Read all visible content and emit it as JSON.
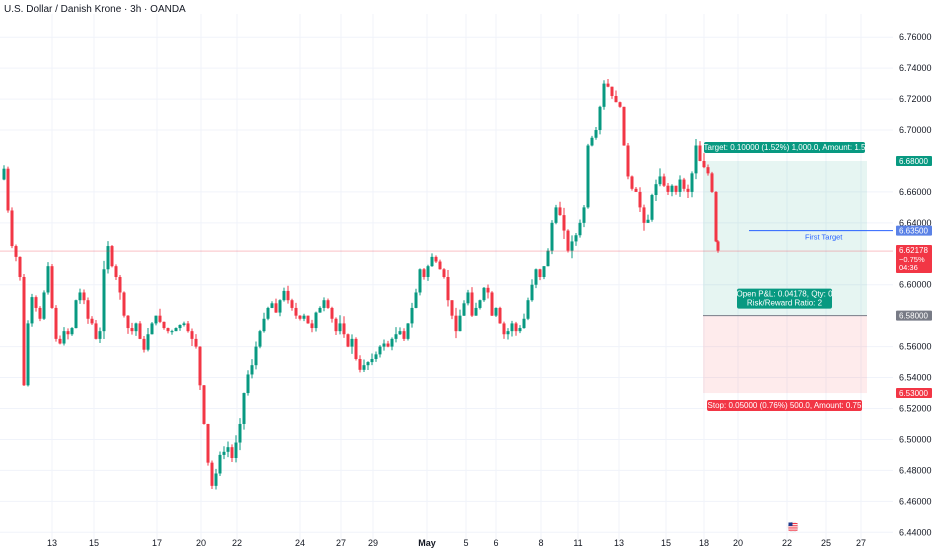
{
  "header": {
    "title": "U.S. Dollar / Danish Krone · 3h · OANDA"
  },
  "colors": {
    "up": "#089981",
    "down": "#f23645",
    "blue": "#2962ff",
    "badge_blue": "#5b82e6"
  },
  "chart_data": {
    "type": "candlestick",
    "ylim": [
      6.435,
      6.775
    ],
    "y_ticks": [
      "6.76000",
      "6.74000",
      "6.72000",
      "6.70000",
      "6.66000",
      "6.64000",
      "6.60000",
      "6.56000",
      "6.54000",
      "6.52000",
      "6.50000",
      "6.48000",
      "6.46000",
      "6.44000"
    ],
    "x_ticks": [
      {
        "label": "13",
        "pos": 52
      },
      {
        "label": "15",
        "pos": 94
      },
      {
        "label": "17",
        "pos": 157
      },
      {
        "label": "20",
        "pos": 201
      },
      {
        "label": "22",
        "pos": 237
      },
      {
        "label": "24",
        "pos": 300
      },
      {
        "label": "27",
        "pos": 341
      },
      {
        "label": "29",
        "pos": 373
      },
      {
        "label": "May",
        "pos": 427,
        "bold": true
      },
      {
        "label": "5",
        "pos": 466
      },
      {
        "label": "6",
        "pos": 496
      },
      {
        "label": "8",
        "pos": 541
      },
      {
        "label": "11",
        "pos": 578
      },
      {
        "label": "13",
        "pos": 619
      },
      {
        "label": "15",
        "pos": 666
      },
      {
        "label": "18",
        "pos": 704
      },
      {
        "label": "20",
        "pos": 738
      },
      {
        "label": "22",
        "pos": 787
      },
      {
        "label": "25",
        "pos": 826
      },
      {
        "label": "27",
        "pos": 861
      }
    ],
    "price_path": [
      [
        0,
        6.668
      ],
      [
        4,
        6.675
      ],
      [
        8,
        6.648
      ],
      [
        12,
        6.625
      ],
      [
        16,
        6.618
      ],
      [
        20,
        6.605
      ],
      [
        24,
        6.535
      ],
      [
        28,
        6.575
      ],
      [
        32,
        6.592
      ],
      [
        36,
        6.585
      ],
      [
        40,
        6.578
      ],
      [
        44,
        6.595
      ],
      [
        48,
        6.612
      ],
      [
        52,
        6.585
      ],
      [
        56,
        6.565
      ],
      [
        60,
        6.562
      ],
      [
        64,
        6.57
      ],
      [
        68,
        6.568
      ],
      [
        72,
        6.572
      ],
      [
        76,
        6.59
      ],
      [
        80,
        6.595
      ],
      [
        84,
        6.59
      ],
      [
        88,
        6.578
      ],
      [
        92,
        6.575
      ],
      [
        96,
        6.565
      ],
      [
        100,
        6.57
      ],
      [
        104,
        6.61
      ],
      [
        108,
        6.625
      ],
      [
        112,
        6.612
      ],
      [
        116,
        6.605
      ],
      [
        120,
        6.595
      ],
      [
        124,
        6.58
      ],
      [
        128,
        6.572
      ],
      [
        132,
        6.57
      ],
      [
        136,
        6.575
      ],
      [
        140,
        6.565
      ],
      [
        144,
        6.558
      ],
      [
        148,
        6.568
      ],
      [
        152,
        6.575
      ],
      [
        156,
        6.58
      ],
      [
        160,
        6.576
      ],
      [
        164,
        6.572
      ],
      [
        168,
        6.57
      ],
      [
        172,
        6.57
      ],
      [
        176,
        6.572
      ],
      [
        180,
        6.574
      ],
      [
        184,
        6.575
      ],
      [
        188,
        6.57
      ],
      [
        192,
        6.565
      ],
      [
        196,
        6.56
      ],
      [
        200,
        6.535
      ],
      [
        204,
        6.51
      ],
      [
        208,
        6.485
      ],
      [
        212,
        6.47
      ],
      [
        216,
        6.478
      ],
      [
        220,
        6.49
      ],
      [
        224,
        6.492
      ],
      [
        228,
        6.495
      ],
      [
        232,
        6.488
      ],
      [
        236,
        6.498
      ],
      [
        240,
        6.51
      ],
      [
        244,
        6.53
      ],
      [
        248,
        6.542
      ],
      [
        252,
        6.548
      ],
      [
        256,
        6.56
      ],
      [
        260,
        6.57
      ],
      [
        264,
        6.578
      ],
      [
        268,
        6.585
      ],
      [
        272,
        6.588
      ],
      [
        276,
        6.582
      ],
      [
        280,
        6.59
      ],
      [
        284,
        6.596
      ],
      [
        288,
        6.59
      ],
      [
        292,
        6.585
      ],
      [
        296,
        6.58
      ],
      [
        300,
        6.578
      ],
      [
        304,
        6.58
      ],
      [
        308,
        6.575
      ],
      [
        312,
        6.572
      ],
      [
        316,
        6.582
      ],
      [
        320,
        6.585
      ],
      [
        324,
        6.59
      ],
      [
        328,
        6.585
      ],
      [
        332,
        6.578
      ],
      [
        336,
        6.57
      ],
      [
        340,
        6.575
      ],
      [
        344,
        6.568
      ],
      [
        348,
        6.56
      ],
      [
        352,
        6.565
      ],
      [
        356,
        6.552
      ],
      [
        360,
        6.545
      ],
      [
        364,
        6.548
      ],
      [
        368,
        6.55
      ],
      [
        372,
        6.552
      ],
      [
        376,
        6.555
      ],
      [
        380,
        6.56
      ],
      [
        384,
        6.562
      ],
      [
        388,
        6.56
      ],
      [
        392,
        6.565
      ],
      [
        396,
        6.568
      ],
      [
        400,
        6.57
      ],
      [
        404,
        6.565
      ],
      [
        408,
        6.575
      ],
      [
        412,
        6.585
      ],
      [
        416,
        6.595
      ],
      [
        420,
        6.61
      ],
      [
        424,
        6.605
      ],
      [
        428,
        6.612
      ],
      [
        432,
        6.618
      ],
      [
        436,
        6.615
      ],
      [
        440,
        6.61
      ],
      [
        444,
        6.605
      ],
      [
        448,
        6.59
      ],
      [
        452,
        6.58
      ],
      [
        456,
        6.57
      ],
      [
        460,
        6.58
      ],
      [
        464,
        6.588
      ],
      [
        468,
        6.595
      ],
      [
        472,
        6.58
      ],
      [
        476,
        6.585
      ],
      [
        480,
        6.59
      ],
      [
        484,
        6.598
      ],
      [
        488,
        6.595
      ],
      [
        492,
        6.58
      ],
      [
        496,
        6.585
      ],
      [
        500,
        6.575
      ],
      [
        504,
        6.568
      ],
      [
        508,
        6.57
      ],
      [
        512,
        6.575
      ],
      [
        516,
        6.57
      ],
      [
        520,
        6.572
      ],
      [
        524,
        6.578
      ],
      [
        528,
        6.59
      ],
      [
        532,
        6.6
      ],
      [
        536,
        6.61
      ],
      [
        540,
        6.605
      ],
      [
        544,
        6.612
      ],
      [
        548,
        6.622
      ],
      [
        552,
        6.64
      ],
      [
        556,
        6.65
      ],
      [
        560,
        6.645
      ],
      [
        564,
        6.635
      ],
      [
        568,
        6.622
      ],
      [
        572,
        6.628
      ],
      [
        576,
        6.632
      ],
      [
        580,
        6.64
      ],
      [
        584,
        6.65
      ],
      [
        588,
        6.69
      ],
      [
        592,
        6.695
      ],
      [
        596,
        6.7
      ],
      [
        600,
        6.715
      ],
      [
        604,
        6.73
      ],
      [
        608,
        6.728
      ],
      [
        612,
        6.722
      ],
      [
        616,
        6.718
      ],
      [
        620,
        6.715
      ],
      [
        624,
        6.69
      ],
      [
        628,
        6.67
      ],
      [
        632,
        6.662
      ],
      [
        636,
        6.66
      ],
      [
        640,
        6.65
      ],
      [
        644,
        6.64
      ],
      [
        648,
        6.642
      ],
      [
        652,
        6.658
      ],
      [
        656,
        6.665
      ],
      [
        660,
        6.67
      ],
      [
        664,
        6.664
      ],
      [
        668,
        6.66
      ],
      [
        672,
        6.664
      ],
      [
        676,
        6.66
      ],
      [
        680,
        6.668
      ],
      [
        684,
        6.662
      ],
      [
        688,
        6.66
      ],
      [
        692,
        6.672
      ],
      [
        696,
        6.69
      ],
      [
        700,
        6.68
      ],
      [
        704,
        6.676
      ],
      [
        708,
        6.672
      ],
      [
        712,
        6.66
      ],
      [
        716,
        6.628
      ],
      [
        718,
        6.622
      ]
    ],
    "last_price": {
      "value": "6.62178",
      "change": "−0.75%",
      "countdown": "04:36"
    },
    "target_line": {
      "value": "6.63500",
      "label": "First Target"
    },
    "take_profit": {
      "value": "6.68000",
      "label": "Target: 0.10000 (1.52%) 1,000.0, Amount: 1.5"
    },
    "entry": {
      "value": "6.58000",
      "label_line1": "Open P&L: 0.04178, Qty: 0",
      "label_line2": "Risk/Reward Ratio: 2"
    },
    "stop": {
      "value": "6.53000",
      "label": "Stop: 0.05000 (0.76%) 500.0, Amount: 0.75"
    }
  }
}
